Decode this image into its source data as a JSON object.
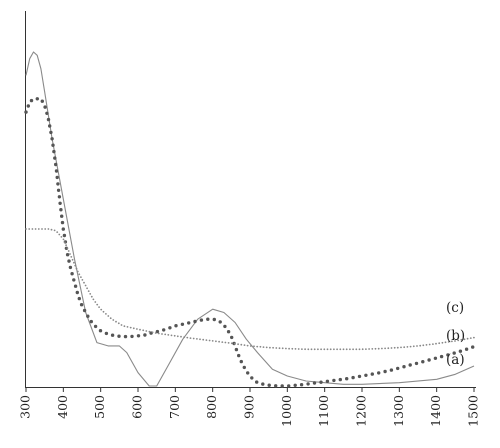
{
  "chart_data": {
    "type": "line",
    "title": "",
    "xlabel": "",
    "ylabel": "",
    "xlim": [
      300,
      1500
    ],
    "ylim": [
      0,
      1
    ],
    "grid": false,
    "x_ticks": [
      300,
      400,
      500,
      600,
      700,
      800,
      900,
      1000,
      1100,
      1200,
      1300,
      1400,
      1500
    ],
    "series": [
      {
        "name": "(a)",
        "style": "solid-thin",
        "color": "#8a8a8a",
        "x": [
          300,
          310,
          320,
          330,
          340,
          350,
          370,
          400,
          430,
          460,
          490,
          520,
          550,
          570,
          600,
          630,
          650,
          680,
          720,
          760,
          800,
          830,
          860,
          890,
          920,
          960,
          1000,
          1050,
          1100,
          1150,
          1200,
          1300,
          1400,
          1450,
          1500
        ],
        "values": [
          0.93,
          0.98,
          1.0,
          0.99,
          0.95,
          0.88,
          0.74,
          0.56,
          0.38,
          0.22,
          0.13,
          0.12,
          0.12,
          0.1,
          0.04,
          0.0,
          0.0,
          0.06,
          0.14,
          0.2,
          0.23,
          0.22,
          0.19,
          0.14,
          0.1,
          0.05,
          0.03,
          0.015,
          0.01,
          0.005,
          0.005,
          0.01,
          0.02,
          0.035,
          0.06
        ]
      },
      {
        "name": "(b)",
        "style": "large-dots",
        "color": "#555555",
        "x": [
          300,
          310,
          320,
          330,
          340,
          350,
          360,
          370,
          380,
          390,
          400,
          410,
          420,
          430,
          440,
          450,
          460,
          470,
          480,
          490,
          500,
          520,
          540,
          560,
          580,
          600,
          620,
          640,
          660,
          680,
          700,
          720,
          740,
          760,
          780,
          800,
          810,
          820,
          830,
          840,
          850,
          860,
          870,
          880,
          890,
          900,
          910,
          920,
          940,
          960,
          980,
          1000,
          1020,
          1040,
          1060,
          1080,
          1100,
          1120,
          1140,
          1160,
          1180,
          1200,
          1220,
          1240,
          1260,
          1280,
          1300,
          1320,
          1340,
          1360,
          1380,
          1400,
          1420,
          1440,
          1460,
          1480,
          1500
        ],
        "values": [
          0.82,
          0.85,
          0.86,
          0.86,
          0.86,
          0.84,
          0.8,
          0.74,
          0.66,
          0.56,
          0.47,
          0.4,
          0.35,
          0.31,
          0.27,
          0.24,
          0.22,
          0.2,
          0.185,
          0.175,
          0.165,
          0.155,
          0.15,
          0.148,
          0.148,
          0.15,
          0.153,
          0.16,
          0.165,
          0.172,
          0.18,
          0.185,
          0.19,
          0.195,
          0.2,
          0.2,
          0.198,
          0.192,
          0.182,
          0.168,
          0.148,
          0.12,
          0.09,
          0.065,
          0.045,
          0.03,
          0.018,
          0.01,
          0.004,
          0.001,
          0.0,
          0.0,
          0.002,
          0.004,
          0.007,
          0.01,
          0.013,
          0.016,
          0.019,
          0.022,
          0.026,
          0.03,
          0.034,
          0.038,
          0.043,
          0.048,
          0.054,
          0.06,
          0.066,
          0.072,
          0.078,
          0.084,
          0.09,
          0.096,
          0.103,
          0.11,
          0.118
        ]
      },
      {
        "name": "(c)",
        "style": "small-dots",
        "color": "#888888",
        "x": [
          300,
          320,
          340,
          360,
          380,
          400,
          420,
          440,
          460,
          480,
          500,
          530,
          560,
          600,
          650,
          700,
          750,
          800,
          850,
          900,
          950,
          1000,
          1050,
          1100,
          1150,
          1200,
          1250,
          1300,
          1350,
          1400,
          1450,
          1500
        ],
        "values": [
          0.47,
          0.47,
          0.47,
          0.47,
          0.465,
          0.44,
          0.39,
          0.34,
          0.3,
          0.26,
          0.23,
          0.2,
          0.18,
          0.17,
          0.158,
          0.15,
          0.142,
          0.135,
          0.128,
          0.12,
          0.115,
          0.112,
          0.11,
          0.11,
          0.11,
          0.11,
          0.112,
          0.115,
          0.12,
          0.127,
          0.135,
          0.145
        ]
      }
    ]
  }
}
